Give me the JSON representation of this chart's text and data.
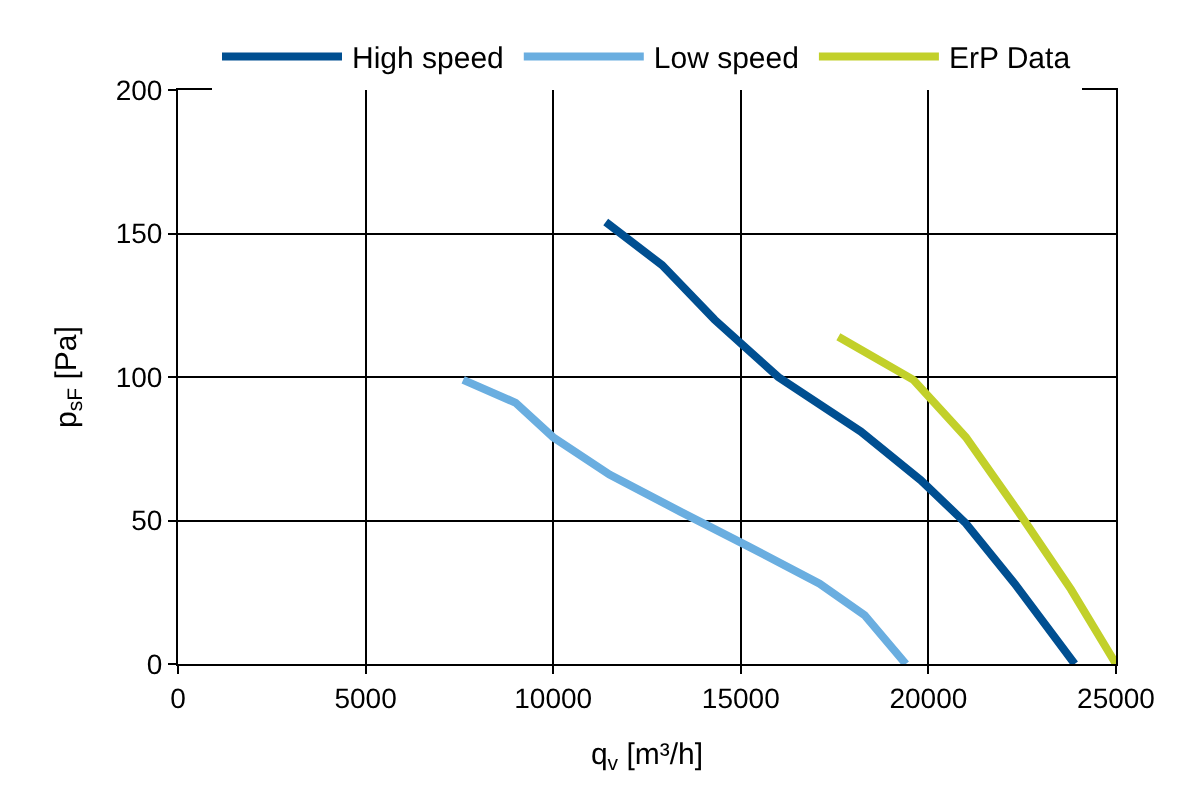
{
  "chart_data": {
    "type": "line",
    "xlabel": "q$_{v}$ [m³/h]",
    "ylabel": "p$_{sF}$ [Pa]",
    "xlim": [
      0,
      25000
    ],
    "xticks": [
      0,
      5000,
      10000,
      15000,
      20000,
      25000
    ],
    "ylim": [
      0,
      200
    ],
    "yticks": [
      0,
      50,
      100,
      150,
      200
    ],
    "grid": true,
    "legend": "top",
    "marker": "none",
    "line_style": "solid",
    "series": [
      {
        "name": "High speed",
        "color": "#004f91",
        "x": [
          11400,
          12900,
          14300,
          16000,
          18200,
          19800,
          21000,
          22300,
          23900
        ],
        "values": [
          154,
          139,
          120,
          100,
          81,
          64,
          49,
          28,
          0
        ]
      },
      {
        "name": "Low speed",
        "color": "#6aaee0",
        "x": [
          7600,
          9000,
          10000,
          11500,
          13400,
          15200,
          17100,
          18300,
          19400
        ],
        "values": [
          99,
          91,
          79,
          66,
          53,
          41,
          28,
          17,
          0
        ]
      },
      {
        "name": "ErP Data",
        "color": "#c2d02a",
        "x": [
          17600,
          19600,
          21000,
          22400,
          23800,
          25000
        ],
        "values": [
          114,
          99,
          79,
          53,
          26,
          0
        ]
      }
    ]
  }
}
